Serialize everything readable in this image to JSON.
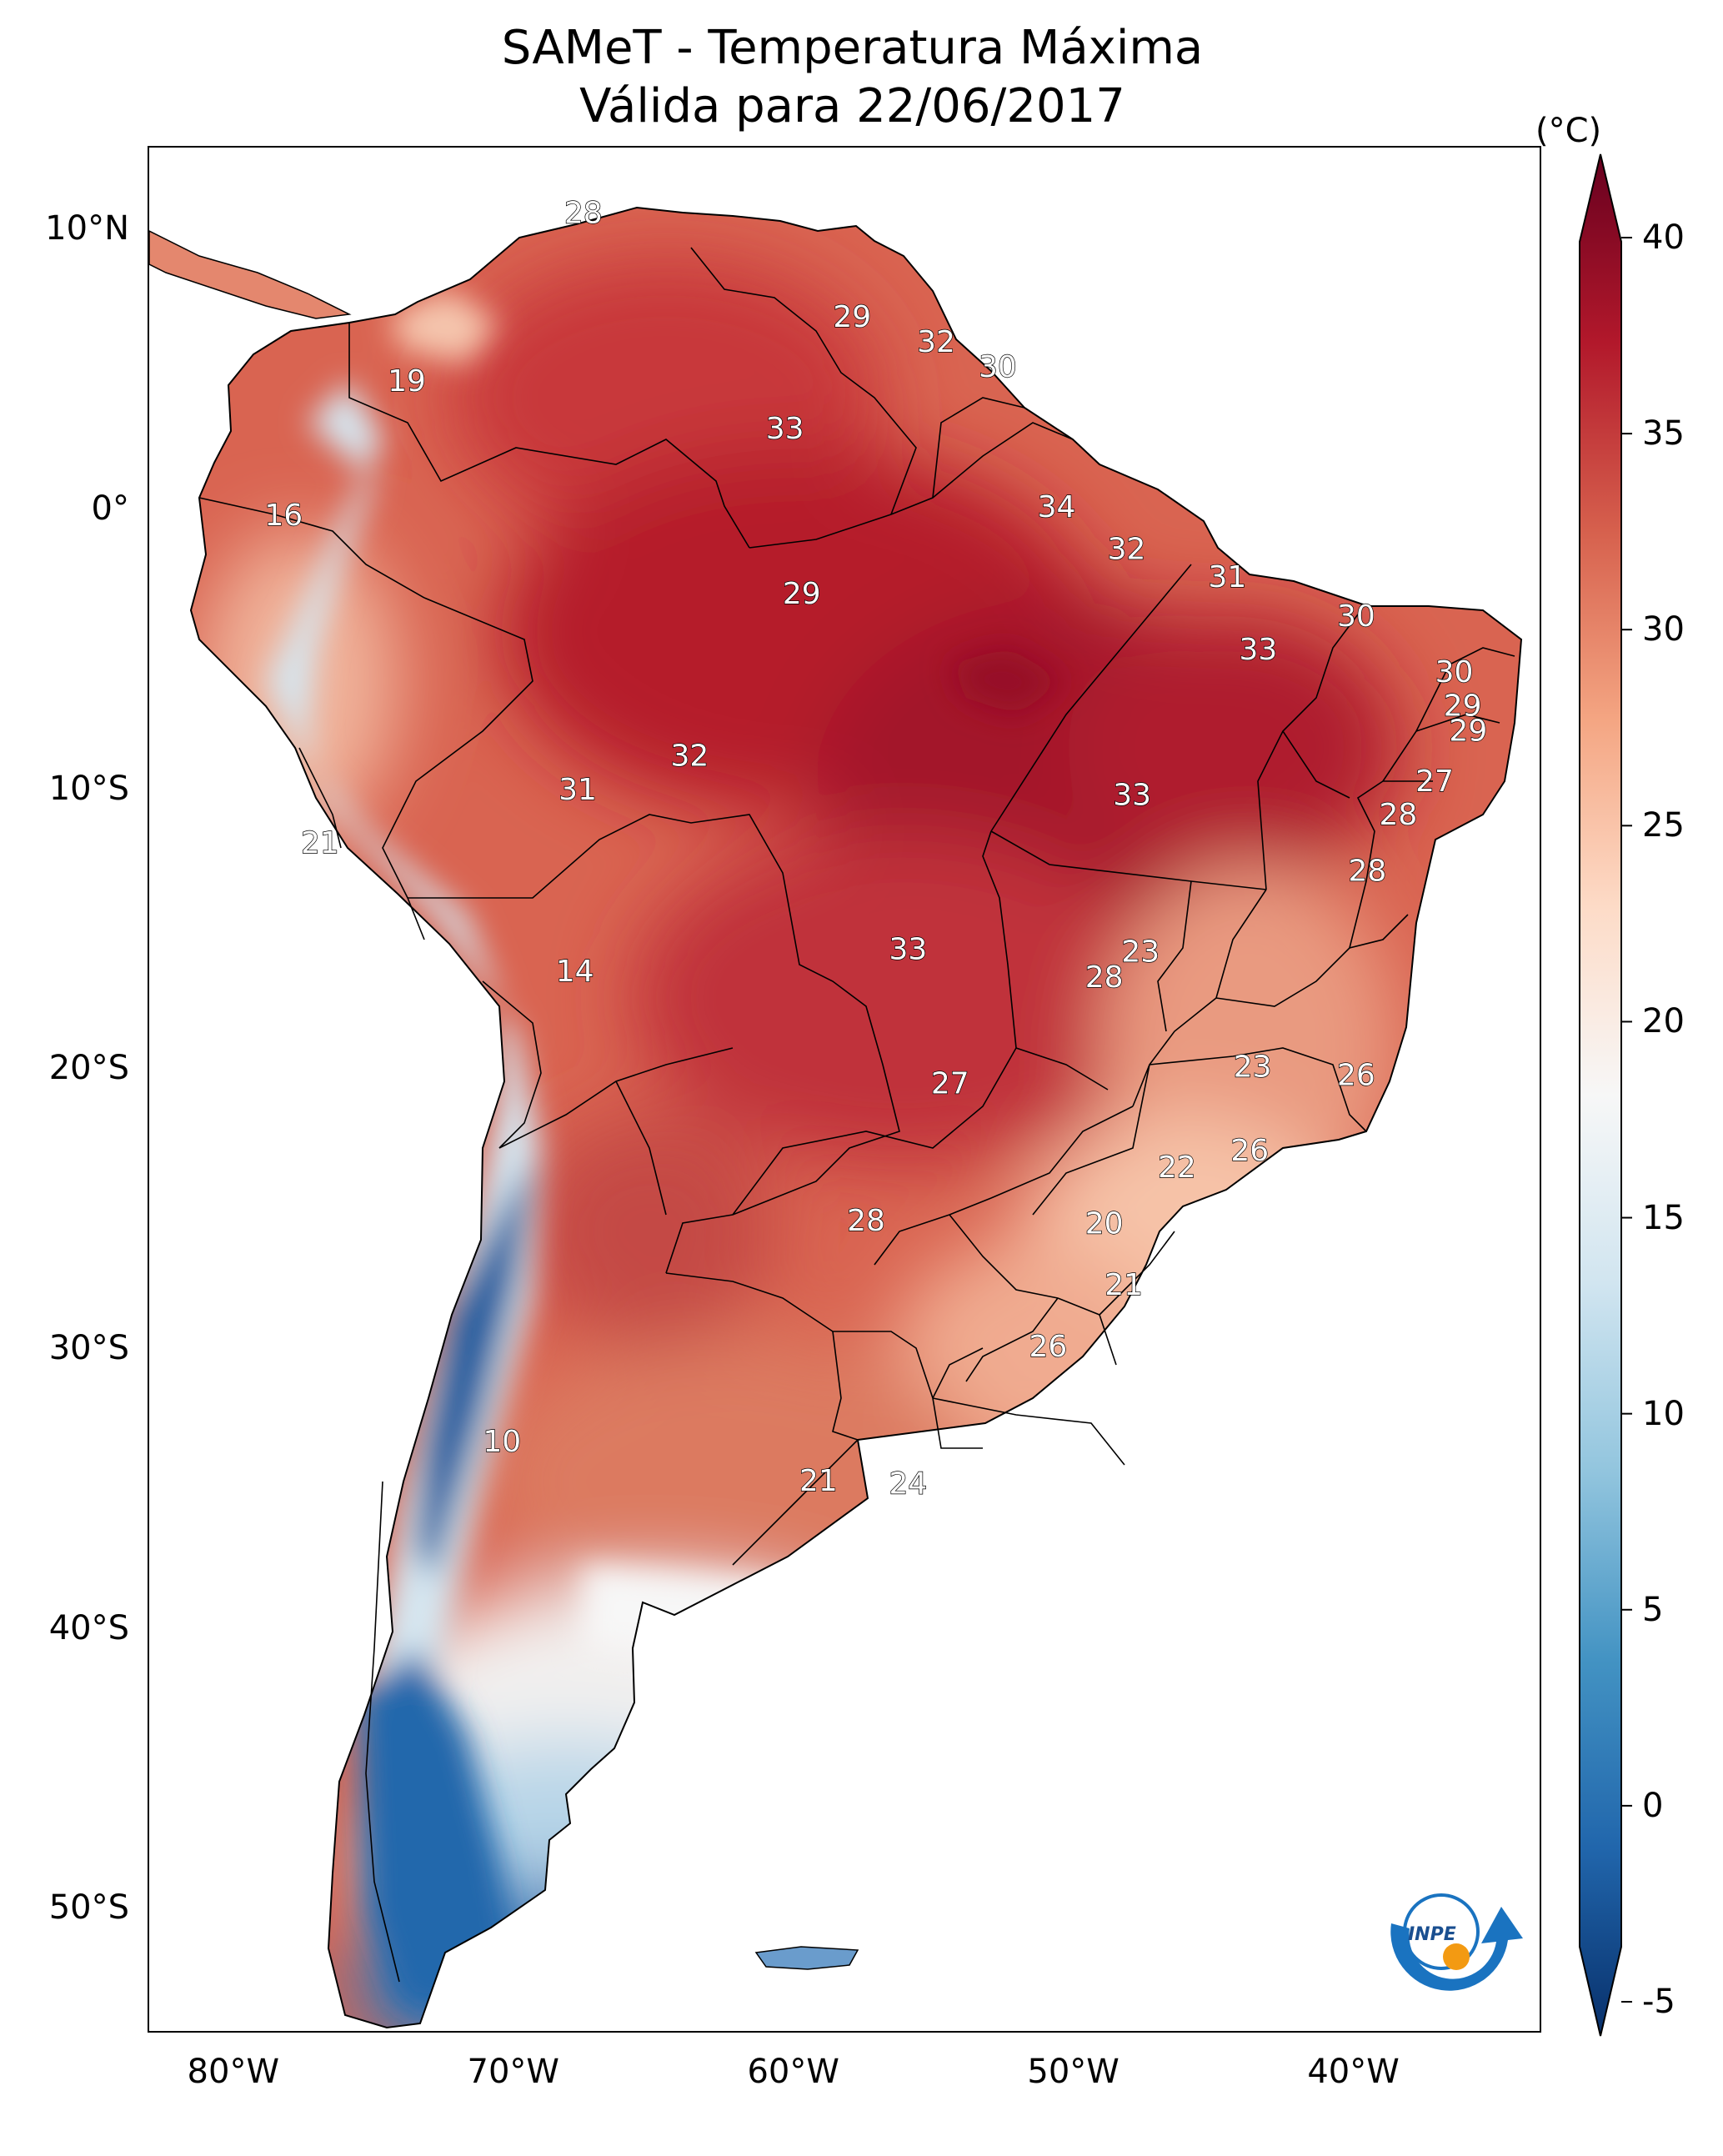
{
  "title": {
    "line1": "SAMeT - Temperatura Máxima",
    "line2": "Válida para 22/06/2017"
  },
  "map": {
    "region": "South America",
    "lat_labels": [
      "10°N",
      "0°",
      "10°S",
      "20°S",
      "30°S",
      "40°S",
      "50°S"
    ],
    "lon_labels": [
      "80°W",
      "70°W",
      "60°W",
      "50°W",
      "40°W"
    ],
    "contour_labels": [
      {
        "value": "28",
        "lon": -67.5,
        "lat": 10.5
      },
      {
        "value": "19",
        "lon": -73.8,
        "lat": 4.5
      },
      {
        "value": "16",
        "lon": -78.2,
        "lat": -0.3
      },
      {
        "value": "29",
        "lon": -57.9,
        "lat": 6.8
      },
      {
        "value": "32",
        "lon": -54.9,
        "lat": 5.9
      },
      {
        "value": "30",
        "lon": -52.7,
        "lat": 5.0
      },
      {
        "value": "33",
        "lon": -60.3,
        "lat": 2.8
      },
      {
        "value": "34",
        "lon": -50.6,
        "lat": 0.0
      },
      {
        "value": "32",
        "lon": -48.1,
        "lat": -1.5
      },
      {
        "value": "31",
        "lon": -44.5,
        "lat": -2.5
      },
      {
        "value": "29",
        "lon": -59.7,
        "lat": -3.1
      },
      {
        "value": "30",
        "lon": -39.9,
        "lat": -3.9
      },
      {
        "value": "33",
        "lon": -43.4,
        "lat": -5.1
      },
      {
        "value": "30",
        "lon": -36.4,
        "lat": -5.9
      },
      {
        "value": "29",
        "lon": -36.1,
        "lat": -7.1
      },
      {
        "value": "29",
        "lon": -35.9,
        "lat": -8.0
      },
      {
        "value": "32",
        "lon": -63.7,
        "lat": -8.9
      },
      {
        "value": "31",
        "lon": -67.7,
        "lat": -10.1
      },
      {
        "value": "33",
        "lon": -47.9,
        "lat": -10.3
      },
      {
        "value": "27",
        "lon": -37.1,
        "lat": -9.8
      },
      {
        "value": "28",
        "lon": -38.4,
        "lat": -11.0
      },
      {
        "value": "21",
        "lon": -76.9,
        "lat": -12.0
      },
      {
        "value": "28",
        "lon": -39.5,
        "lat": -13.0
      },
      {
        "value": "33",
        "lon": -55.9,
        "lat": -15.8
      },
      {
        "value": "23",
        "lon": -47.6,
        "lat": -15.9
      },
      {
        "value": "14",
        "lon": -67.8,
        "lat": -16.6
      },
      {
        "value": "28",
        "lon": -48.9,
        "lat": -16.8
      },
      {
        "value": "23",
        "lon": -43.6,
        "lat": -20.0
      },
      {
        "value": "26",
        "lon": -39.9,
        "lat": -20.3
      },
      {
        "value": "27",
        "lon": -54.4,
        "lat": -20.6
      },
      {
        "value": "26",
        "lon": -43.7,
        "lat": -23.0
      },
      {
        "value": "22",
        "lon": -46.3,
        "lat": -23.6
      },
      {
        "value": "28",
        "lon": -57.4,
        "lat": -25.5
      },
      {
        "value": "20",
        "lon": -48.9,
        "lat": -25.6
      },
      {
        "value": "21",
        "lon": -48.2,
        "lat": -27.8
      },
      {
        "value": "26",
        "lon": -50.9,
        "lat": -30.0
      },
      {
        "value": "10",
        "lon": -70.4,
        "lat": -33.4
      },
      {
        "value": "21",
        "lon": -59.1,
        "lat": -34.8
      },
      {
        "value": "24",
        "lon": -55.9,
        "lat": -34.9
      }
    ]
  },
  "colorbar": {
    "unit": "(°C)",
    "min": -5,
    "max": 40,
    "tick_labels": [
      "40",
      "35",
      "30",
      "25",
      "20",
      "15",
      "10",
      "5",
      "0",
      "-5"
    ],
    "colors": [
      "#08306b",
      "#2166ac",
      "#4393c3",
      "#92c5de",
      "#d1e5f0",
      "#f7f7f7",
      "#fddbc7",
      "#f4a582",
      "#d6604d",
      "#b2182b",
      "#67001f"
    ]
  },
  "logo": {
    "text": "INPE"
  }
}
